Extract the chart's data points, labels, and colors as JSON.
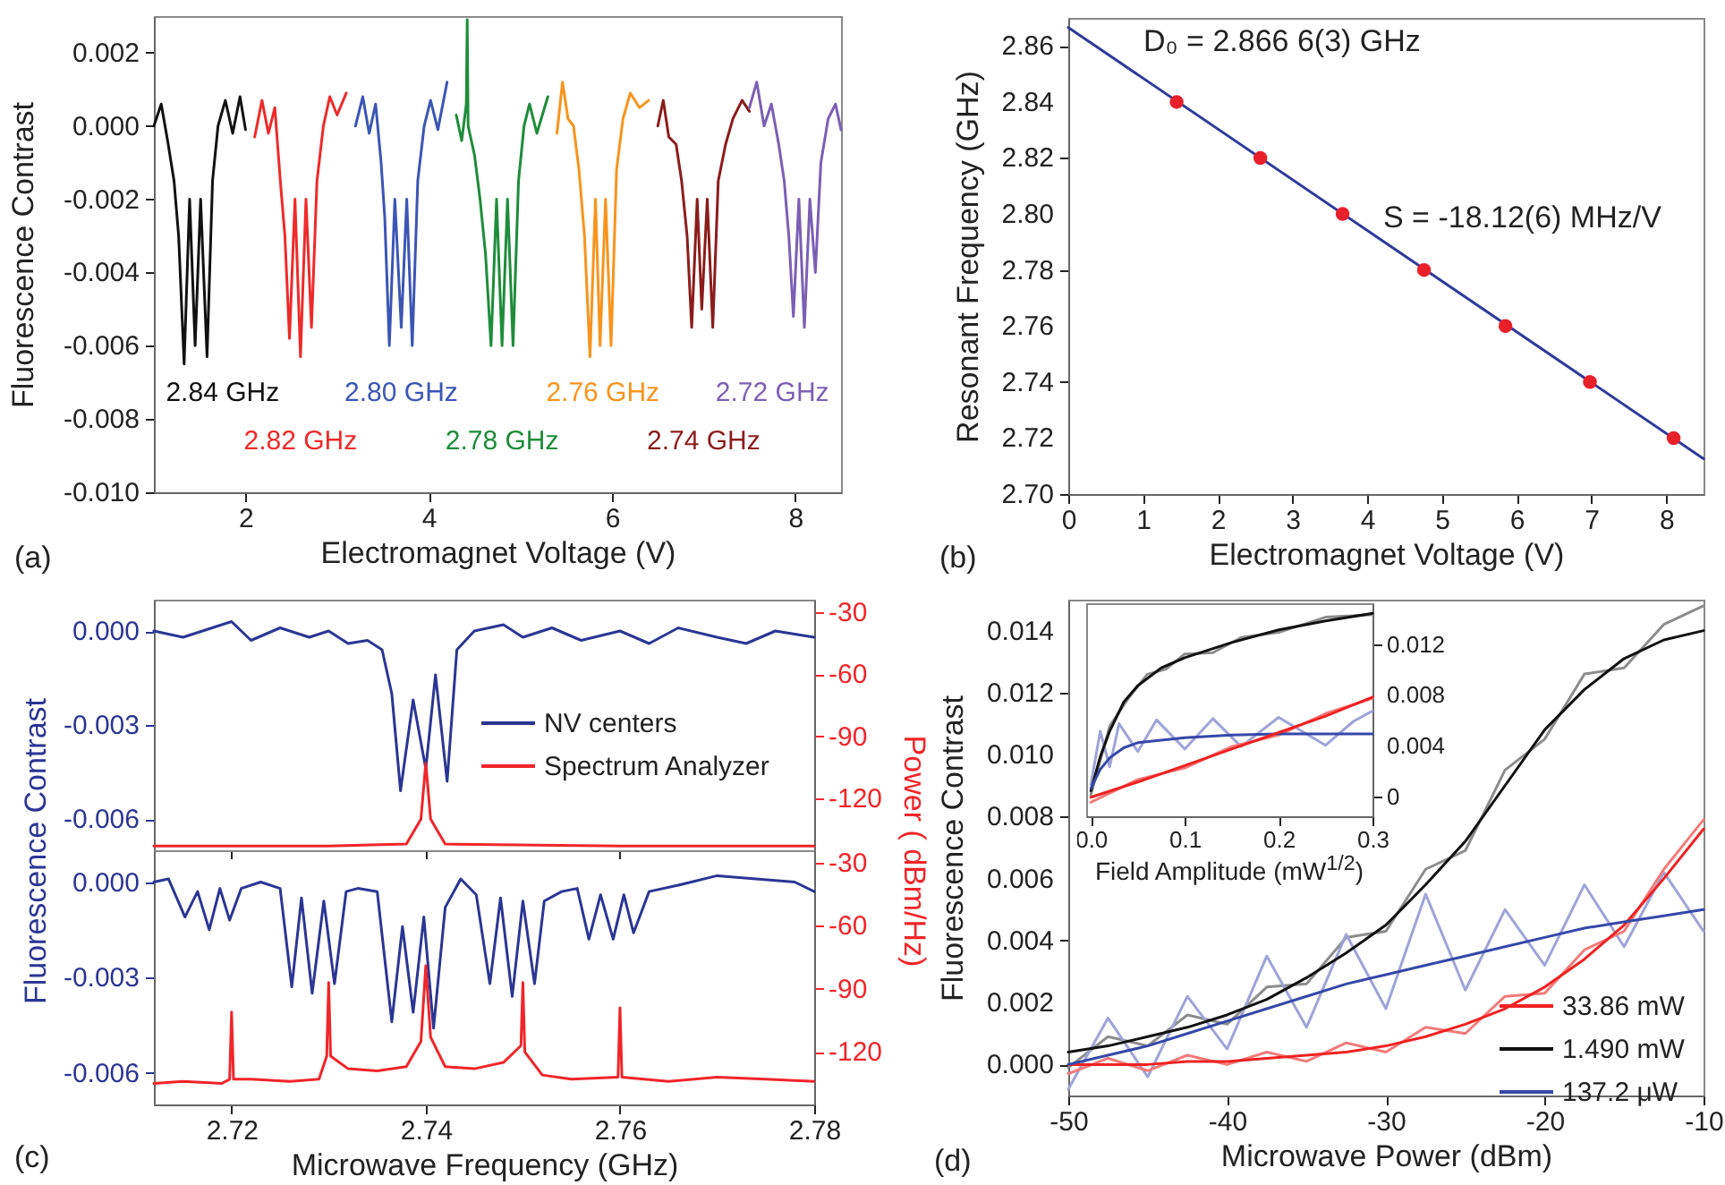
{
  "chart_data": [
    {
      "type": "line",
      "xlabel": "Electromagnet Voltage (V)",
      "ylabel": "Fluorescence Contrast",
      "xlim": [
        1,
        8.5
      ],
      "xticks": [
        2,
        4,
        6,
        8
      ],
      "ylim": [
        -0.01,
        0.003
      ],
      "yticks": [
        {
          "value": -0.01,
          "label": "-0.010"
        },
        -0.008,
        -0.006,
        -0.004,
        -0.002,
        {
          "value": 0,
          "label": "0.000"
        },
        0.002
      ],
      "annotations": [
        "(a)"
      ],
      "series": [
        {
          "name": "2.84 GHz",
          "color": "#111111",
          "x": [
            1.0,
            1.08,
            1.15,
            1.22,
            1.27,
            1.33,
            1.39,
            1.45,
            1.51,
            1.58,
            1.64,
            1.7,
            1.78,
            1.86,
            1.94,
            2.0
          ],
          "values": [
            0.0,
            0.0006,
            -0.0004,
            -0.0015,
            -0.003,
            -0.0065,
            -0.002,
            -0.006,
            -0.002,
            -0.0063,
            -0.0015,
            0.0,
            0.0007,
            -0.0002,
            0.0008,
            -0.0001
          ]
        },
        {
          "name": "2.82 GHz",
          "color": "#ee2a2a",
          "x": [
            2.1,
            2.18,
            2.25,
            2.32,
            2.38,
            2.43,
            2.48,
            2.54,
            2.6,
            2.66,
            2.72,
            2.78,
            2.85,
            2.92,
            3.0,
            3.1
          ],
          "values": [
            -0.0003,
            0.0007,
            -0.0002,
            0.0005,
            -0.0015,
            -0.003,
            -0.0058,
            -0.002,
            -0.0063,
            -0.002,
            -0.0055,
            -0.0015,
            0.0,
            0.0008,
            0.0003,
            0.0009
          ]
        },
        {
          "name": "2.80 GHz",
          "color": "#3b55b5",
          "x": [
            3.2,
            3.28,
            3.35,
            3.42,
            3.48,
            3.52,
            3.57,
            3.63,
            3.7,
            3.76,
            3.82,
            3.88,
            3.95,
            4.02,
            4.1,
            4.2
          ],
          "values": [
            0.0,
            0.0008,
            -0.0002,
            0.0006,
            -0.001,
            -0.0025,
            -0.006,
            -0.002,
            -0.0055,
            -0.002,
            -0.006,
            -0.0015,
            0.0,
            0.0007,
            -0.0001,
            0.0012
          ]
        },
        {
          "name": "2.78 GHz",
          "color": "#1e8c3a",
          "x": [
            4.3,
            4.36,
            4.41,
            4.42,
            4.43,
            4.5,
            4.56,
            4.62,
            4.68,
            4.74,
            4.8,
            4.86,
            4.92,
            4.98,
            5.04,
            5.1,
            5.18,
            5.3
          ],
          "values": [
            0.0003,
            -0.0004,
            0.0006,
            0.0029,
            0.0,
            -0.0008,
            -0.002,
            -0.0035,
            -0.006,
            -0.002,
            -0.006,
            -0.002,
            -0.006,
            -0.0015,
            0.0,
            0.0006,
            -0.0002,
            0.0008
          ]
        },
        {
          "name": "2.76 GHz",
          "color": "#f7941d",
          "x": [
            5.4,
            5.46,
            5.52,
            5.58,
            5.64,
            5.7,
            5.76,
            5.82,
            5.87,
            5.93,
            5.99,
            6.05,
            6.12,
            6.2,
            6.3,
            6.4
          ],
          "values": [
            -0.0002,
            0.0012,
            0.0002,
            0.0,
            -0.0012,
            -0.003,
            -0.0063,
            -0.002,
            -0.006,
            -0.002,
            -0.006,
            -0.0012,
            0.0002,
            0.0009,
            0.0005,
            0.0007
          ]
        },
        {
          "name": "2.74 GHz",
          "color": "#8b1c1c",
          "x": [
            6.5,
            6.56,
            6.62,
            6.7,
            6.76,
            6.82,
            6.87,
            6.93,
            6.98,
            7.04,
            7.1,
            7.16,
            7.24,
            7.32,
            7.42,
            7.5
          ],
          "values": [
            0.0,
            0.0007,
            -0.0003,
            -0.0005,
            -0.0015,
            -0.003,
            -0.0055,
            -0.002,
            -0.005,
            -0.002,
            -0.0055,
            -0.0015,
            -0.0005,
            0.0002,
            0.0007,
            0.0004
          ]
        },
        {
          "name": "2.72 GHz",
          "color": "#7b5fb5",
          "x": [
            7.5,
            7.58,
            7.66,
            7.74,
            7.82,
            7.88,
            7.93,
            7.98,
            8.04,
            8.1,
            8.16,
            8.22,
            8.28,
            8.36,
            8.44,
            8.5
          ],
          "values": [
            0.0005,
            0.0012,
            0.0,
            0.0006,
            -0.0005,
            -0.0015,
            -0.003,
            -0.0052,
            -0.002,
            -0.0055,
            -0.002,
            -0.004,
            -0.001,
            0.0002,
            0.0006,
            -0.0001
          ]
        }
      ]
    },
    {
      "type": "scatter",
      "xlabel": "Electromagnet Voltage (V)",
      "ylabel": "Resonant Frequency (GHz)",
      "xlim": [
        0,
        8.5
      ],
      "xticks": [
        0,
        1,
        2,
        3,
        4,
        5,
        6,
        7,
        8
      ],
      "ylim": [
        2.7,
        2.87
      ],
      "yticks": [
        {
          "value": 2.7,
          "label": "2.70"
        },
        2.72,
        2.74,
        2.76,
        2.78,
        {
          "value": 2.8,
          "label": "2.80"
        },
        2.82,
        2.84,
        2.86
      ],
      "annotations": [
        {
          "text": "D₀ = 2.866 6(3) GHz",
          "x": 0,
          "y": 2.8666
        },
        "S = -18.12(6) MHz/V",
        "(b)"
      ],
      "series": [
        {
          "color": "#e8202a",
          "x": [
            1.45,
            2.57,
            3.67,
            4.76,
            5.85,
            6.98,
            8.1
          ],
          "values": [
            2.84,
            2.82,
            2.8,
            2.78,
            2.76,
            2.74,
            2.72
          ]
        },
        {
          "type": "line",
          "color": "#2e3a9a",
          "x": [
            0,
            8.5
          ],
          "values": [
            2.8666,
            2.7126
          ]
        }
      ]
    },
    {
      "type": "line",
      "legend": "right",
      "tick_labels": "y",
      "xlim": [
        2.712,
        2.78
      ],
      "xticks": [
        2.72,
        2.74,
        2.76,
        2.78
      ],
      "ylim": [
        -0.007,
        0.001
      ],
      "yticks": [
        -0.006,
        -0.003,
        {
          "value": 0,
          "label": "0.000"
        }
      ],
      "y2lim": [
        -145,
        -24
      ],
      "y2ticks": [
        -120,
        -90,
        -60,
        -30
      ],
      "series": [
        {
          "name": "NV centers",
          "color": "#2b3593",
          "x": [
            2.712,
            2.715,
            2.718,
            2.72,
            2.722,
            2.725,
            2.728,
            2.73,
            2.732,
            2.734,
            2.7355,
            2.7365,
            2.7374,
            2.7387,
            2.74,
            2.741,
            2.7422,
            2.7432,
            2.745,
            2.748,
            2.75,
            2.753,
            2.756,
            2.76,
            2.763,
            2.766,
            2.77,
            2.773,
            2.776,
            2.78
          ],
          "values": [
            0.0,
            -0.0002,
            0.0001,
            0.0003,
            -0.0003,
            0.0001,
            -0.0002,
            0.0,
            -0.0004,
            -0.0003,
            -0.0006,
            -0.002,
            -0.0051,
            -0.0022,
            -0.0044,
            -0.0014,
            -0.0048,
            -0.0006,
            0.0,
            0.0002,
            -0.0002,
            0.0001,
            -0.0003,
            0.0,
            -0.0004,
            0.0001,
            -0.0002,
            -0.0004,
            0.0,
            -0.0002
          ]
        },
        {
          "name": "Spectrum Analyzer",
          "color": "#f0252a",
          "axis": "y2",
          "x": [
            2.712,
            2.73,
            2.738,
            2.7395,
            2.74,
            2.7405,
            2.742,
            2.76,
            2.78
          ],
          "values": [
            -143,
            -143,
            -142,
            -130,
            -103,
            -130,
            -142,
            -143,
            -143
          ]
        }
      ]
    },
    {
      "type": "line",
      "xlabel": "Microwave Frequency (GHz)",
      "ylabel": "Fluorescence Contrast",
      "y2label": "Power ( dBm/Hz)",
      "xlim": [
        2.712,
        2.78
      ],
      "xticks": [
        2.72,
        2.74,
        2.76,
        2.78
      ],
      "ylim": [
        -0.007,
        0.001
      ],
      "yticks": [
        -0.006,
        -0.003,
        {
          "value": 0,
          "label": "0.000"
        }
      ],
      "y2lim": [
        -145,
        -24
      ],
      "y2ticks": [
        -120,
        -90,
        -60,
        -30
      ],
      "annotations": [
        "(c)"
      ],
      "series": [
        {
          "color": "#2b3593",
          "x": [
            2.712,
            2.7135,
            2.7152,
            2.7165,
            2.7177,
            2.7188,
            2.7198,
            2.721,
            2.723,
            2.725,
            2.7262,
            2.7272,
            2.7283,
            2.7295,
            2.7306,
            2.7318,
            2.733,
            2.735,
            2.7365,
            2.7376,
            2.7387,
            2.7398,
            2.7408,
            2.742,
            2.7436,
            2.7452,
            2.7466,
            2.7477,
            2.7489,
            2.75,
            2.7512,
            2.7522,
            2.754,
            2.7556,
            2.7568,
            2.758,
            2.7593,
            2.7604,
            2.7614,
            2.763,
            2.766,
            2.77,
            2.774,
            2.778,
            2.78
          ],
          "values": [
            0.0,
            0.0001,
            -0.0011,
            -0.0003,
            -0.0015,
            -0.0002,
            -0.0012,
            -0.0002,
            0.0,
            -0.0002,
            -0.0033,
            -0.0005,
            -0.0035,
            -0.0006,
            -0.0032,
            -0.0003,
            -0.0002,
            -0.0003,
            -0.0044,
            -0.0014,
            -0.0041,
            -0.0011,
            -0.0046,
            -0.0008,
            0.0001,
            -0.0004,
            -0.0032,
            -0.0005,
            -0.0036,
            -0.0006,
            -0.0032,
            -0.0006,
            -0.0003,
            -0.0002,
            -0.0018,
            -0.0004,
            -0.0018,
            -0.0004,
            -0.0016,
            -0.0003,
            -0.0001,
            0.0002,
            0.0001,
            0.0,
            -0.0003
          ]
        },
        {
          "color": "#f0252a",
          "axis": "y2",
          "x": [
            2.712,
            2.715,
            2.719,
            2.7198,
            2.72,
            2.7202,
            2.722,
            2.726,
            2.729,
            2.7298,
            2.73,
            2.7302,
            2.732,
            2.735,
            2.738,
            2.7395,
            2.74,
            2.7405,
            2.742,
            2.745,
            2.748,
            2.7498,
            2.75,
            2.7502,
            2.752,
            2.755,
            2.7598,
            2.76,
            2.7602,
            2.765,
            2.77,
            2.775,
            2.78
          ],
          "values": [
            -135,
            -134,
            -135,
            -133,
            -101,
            -133,
            -133,
            -134,
            -133,
            -122,
            -87,
            -122,
            -128,
            -129,
            -127,
            -115,
            -79,
            -113,
            -127,
            -128,
            -125,
            -117,
            -87,
            -120,
            -131,
            -133,
            -132,
            -99,
            -132,
            -134,
            -132,
            -133,
            -134
          ]
        }
      ]
    },
    {
      "type": "line",
      "legend": "bottom right",
      "xlabel": "Microwave Power (dBm)",
      "ylabel": "Fluorescence Contrast",
      "xlim": [
        -50,
        -10
      ],
      "xticks": [
        -50,
        -40,
        -30,
        -20,
        -10
      ],
      "ylim": [
        -0.001,
        0.015
      ],
      "yticks": [
        {
          "value": 0,
          "label": "0.000"
        },
        0.002,
        0.004,
        0.006,
        0.008,
        {
          "value": 0.01,
          "label": "0.010"
        },
        0.012,
        0.014
      ],
      "annotations": [
        "(d)"
      ],
      "x": [
        -50,
        -47.5,
        -45,
        -42.5,
        -40,
        -37.5,
        -35,
        -32.5,
        -30,
        -27.5,
        -25,
        -22.5,
        -20,
        -17.5,
        -15,
        -12.5,
        -10
      ],
      "series": [
        {
          "color": "#8c8c8c",
          "values": [
            -0.0001,
            0.0009,
            0.0006,
            0.0016,
            0.0013,
            0.0025,
            0.0026,
            0.0041,
            0.0043,
            0.0063,
            0.0069,
            0.0095,
            0.0105,
            0.0126,
            0.0128,
            0.0142,
            0.0148
          ]
        },
        {
          "color": "#9ea3d9",
          "values": [
            -0.0008,
            0.0015,
            -0.0004,
            0.0022,
            0.0005,
            0.0035,
            0.0012,
            0.0042,
            0.0018,
            0.0055,
            0.0024,
            0.005,
            0.0032,
            0.0058,
            0.0038,
            0.0062,
            0.0043
          ]
        },
        {
          "color": "#f47a7a",
          "values": [
            -0.0003,
            0.0002,
            -0.0002,
            0.0003,
            0.0,
            0.0004,
            0.0001,
            0.0007,
            0.0004,
            0.0012,
            0.001,
            0.0022,
            0.0023,
            0.0037,
            0.0043,
            0.0063,
            0.0079
          ]
        },
        {
          "name": "33.86 mW",
          "color": "#ee2222",
          "values": [
            0.0,
            0.0,
            0.0,
            0.0001,
            0.0001,
            0.0002,
            0.0003,
            0.0004,
            0.0006,
            0.0009,
            0.0013,
            0.0018,
            0.0025,
            0.0034,
            0.0045,
            0.006,
            0.0076
          ]
        },
        {
          "name": "1.490 mW",
          "color": "#111111",
          "values": [
            0.0004,
            0.0006,
            0.0009,
            0.0012,
            0.0016,
            0.0021,
            0.0028,
            0.0036,
            0.0045,
            0.0058,
            0.0072,
            0.009,
            0.0108,
            0.0121,
            0.0131,
            0.0137,
            0.014
          ]
        },
        {
          "name": "137.2 μW",
          "color": "#3548a8",
          "values": [
            0.0,
            0.0003,
            0.0006,
            0.001,
            0.0014,
            0.0018,
            0.0022,
            0.0026,
            0.0029,
            0.0032,
            0.0035,
            0.0038,
            0.0041,
            0.0044,
            0.0046,
            0.0048,
            0.005
          ]
        }
      ]
    },
    {
      "type": "line",
      "xlabel": "Field Amplitude (mW$^{1/2}$)",
      "xlim": [
        -0.005,
        0.3
      ],
      "xticks": [
        {
          "value": 0,
          "label": "0.0"
        },
        0.1,
        0.2,
        0.3
      ],
      "y2lim": [
        -0.0015,
        0.0153
      ],
      "y2ticks": [
        {
          "value": 0,
          "label": "0"
        },
        0.004,
        0.008,
        0.012
      ],
      "series": [
        {
          "color": "#8c8c8c",
          "axis": "y2",
          "x": [
            0,
            0.02,
            0.04,
            0.06,
            0.08,
            0.1,
            0.13,
            0.16,
            0.2,
            0.25,
            0.3
          ],
          "values": [
            0.0002,
            0.0056,
            0.0078,
            0.0097,
            0.0101,
            0.0113,
            0.0114,
            0.0126,
            0.013,
            0.0142,
            0.0144
          ]
        },
        {
          "color": "#9ea3d9",
          "axis": "y2",
          "x": [
            0,
            0.01,
            0.02,
            0.03,
            0.05,
            0.07,
            0.1,
            0.13,
            0.16,
            0.2,
            0.25,
            0.28,
            0.3
          ],
          "values": [
            0.001,
            0.0052,
            0.0024,
            0.0058,
            0.0036,
            0.0061,
            0.0038,
            0.0062,
            0.004,
            0.0063,
            0.0041,
            0.006,
            0.0068
          ]
        },
        {
          "color": "#f47a7a",
          "axis": "y2",
          "x": [
            0,
            0.05,
            0.1,
            0.15,
            0.2,
            0.25,
            0.3
          ],
          "values": [
            -0.0004,
            0.0014,
            0.0023,
            0.004,
            0.0049,
            0.0066,
            0.0078
          ]
        },
        {
          "color": "#111111",
          "axis": "y2",
          "x": [
            0,
            0.01,
            0.02,
            0.035,
            0.05,
            0.075,
            0.1,
            0.15,
            0.2,
            0.25,
            0.3
          ],
          "values": [
            0.0005,
            0.0032,
            0.0052,
            0.0075,
            0.0088,
            0.0102,
            0.011,
            0.0122,
            0.0132,
            0.0139,
            0.0145
          ]
        },
        {
          "color": "#3548a8",
          "axis": "y2",
          "x": [
            0,
            0.01,
            0.02,
            0.035,
            0.05,
            0.1,
            0.15,
            0.2,
            0.3
          ],
          "values": [
            0.0007,
            0.0022,
            0.0031,
            0.0039,
            0.0043,
            0.0047,
            0.0049,
            0.005,
            0.005
          ]
        },
        {
          "color": "#ee2222",
          "axis": "y2",
          "x": [
            0,
            0.05,
            0.1,
            0.15,
            0.2,
            0.25,
            0.3
          ],
          "values": [
            0.0,
            0.0012,
            0.0025,
            0.0038,
            0.0051,
            0.0064,
            0.0079
          ]
        }
      ]
    }
  ]
}
